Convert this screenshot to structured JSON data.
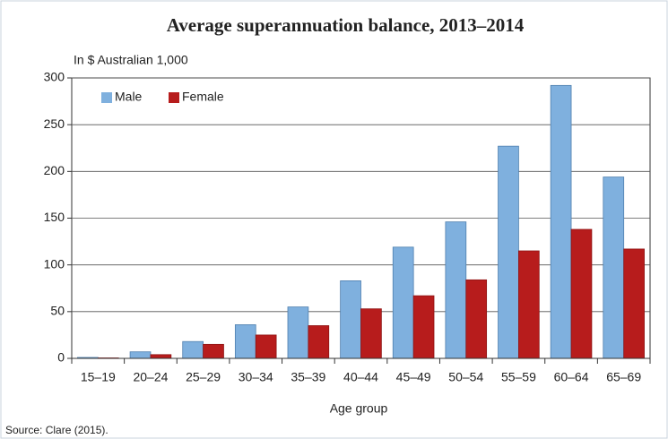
{
  "chart_data": {
    "type": "bar",
    "title": "Average superannuation balance, 2013–2014",
    "y_label": "In $ Australian 1,000",
    "x_label": "Age group",
    "source": "Source: Clare (2015).",
    "categories": [
      "15–19",
      "20–24",
      "25–29",
      "30–34",
      "35–39",
      "40–44",
      "45–49",
      "50–54",
      "55–59",
      "60–64",
      "65–69"
    ],
    "series": [
      {
        "name": "Male",
        "color": "#7fb0de",
        "values": [
          1,
          7,
          18,
          36,
          55,
          83,
          119,
          146,
          227,
          292,
          194
        ]
      },
      {
        "name": "Female",
        "color": "#b71c1c",
        "values": [
          0.5,
          4,
          15,
          25,
          35,
          53,
          67,
          84,
          115,
          138,
          117
        ]
      }
    ],
    "ylim": [
      0,
      300
    ],
    "yticks": [
      0,
      50,
      100,
      150,
      200,
      250,
      300
    ],
    "grid": true,
    "legend": "top-left"
  }
}
